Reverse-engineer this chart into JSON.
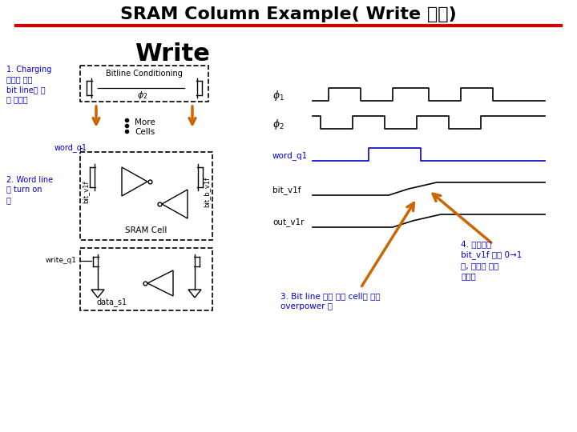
{
  "title": "SRAM Column Example( Write 모델)",
  "title_color": "#000000",
  "title_fontsize": 16,
  "underline_color": "#cc0000",
  "bg_color": "#ffffff",
  "write_label": "Write",
  "annotation1": "1. Charging\n회로에 의해\nbit line에 값\n이 인가됨",
  "annotation2": "2. Word line\n을 turn on\n함",
  "annotation3": "3. Bit line 값에 의해 cell의 값이\noverpower 됨",
  "annotation4": "4. 그림에서\nbit_v1f 값은 0→1\n로, 새로운 값이\n쓰여짐",
  "blue_color": "#0000cc",
  "orange_color": "#cc6600"
}
